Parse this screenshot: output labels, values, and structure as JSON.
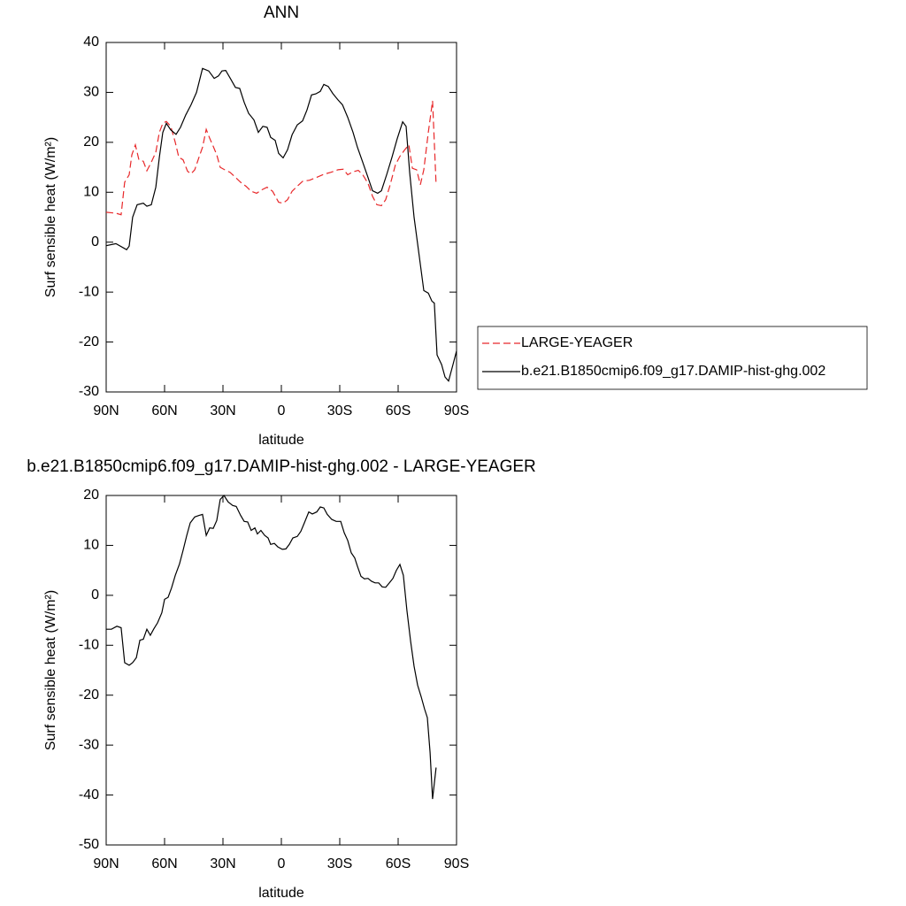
{
  "chart_data": [
    {
      "type": "line",
      "title": "ANN",
      "xlabel": "latitude",
      "ylabel": "Surf sensible heat (W/m²)",
      "xlim": [
        90,
        -90
      ],
      "xticks": [
        {
          "value": 90,
          "label": "90N"
        },
        {
          "value": 60,
          "label": "60N"
        },
        {
          "value": 30,
          "label": "30N"
        },
        0,
        {
          "value": -30,
          "label": "30S"
        },
        {
          "value": -60,
          "label": "60S"
        },
        {
          "value": -90,
          "label": "90S"
        }
      ],
      "ylim": [
        -30,
        40
      ],
      "yticks": [
        -30,
        -20,
        -10,
        0,
        10,
        20,
        30,
        40
      ],
      "legend": "right",
      "series": [
        {
          "name": "LARGE-YEAGER",
          "color": "#e8282a",
          "dash": true,
          "x": [
            90,
            85,
            82.3,
            80.5,
            78.2,
            76.8,
            75,
            73.2,
            70.9,
            69.1,
            66.8,
            64.5,
            62.7,
            60.9,
            59.1,
            56.8,
            54.5,
            52.7,
            50.5,
            48.2,
            46.4,
            44.5,
            42.3,
            40.5,
            38.6,
            36.8,
            35,
            33.2,
            31.4,
            29.1,
            26.4,
            23.6,
            20.9,
            18.2,
            15.5,
            12.7,
            10,
            7.3,
            4.5,
            1.4,
            -0.9,
            -3.2,
            -5.5,
            -8.2,
            -10.9,
            -14.5,
            -18.2,
            -21.8,
            -25.5,
            -29.1,
            -31.8,
            -34.1,
            -36.8,
            -39.5,
            -41.8,
            -44.5,
            -46.8,
            -49.1,
            -51.4,
            -53.6,
            -55.9,
            -58.6,
            -60.9,
            -63.2,
            -65.5,
            -67.3,
            -69.5,
            -71.4,
            -73.2,
            -75.5,
            -77.7,
            -79.5
          ],
          "values": [
            6,
            5.8,
            5.5,
            12,
            13.5,
            17.5,
            19.5,
            16.5,
            16.2,
            14.3,
            16,
            18,
            22,
            23.8,
            24.2,
            23.2,
            20,
            17,
            16.5,
            14.2,
            13.7,
            14.5,
            17,
            19,
            22.6,
            20.8,
            19.2,
            17.5,
            15,
            14.5,
            14,
            13,
            12,
            11.2,
            10.2,
            9.8,
            10.5,
            11,
            10.2,
            8,
            7.8,
            8.5,
            10.2,
            11.2,
            12.2,
            12.4,
            13,
            13.6,
            14,
            14.5,
            14.6,
            13.5,
            14.1,
            14.4,
            13.5,
            11.8,
            9.2,
            7.5,
            7.3,
            8.5,
            11.5,
            15.5,
            17.2,
            18.4,
            19.5,
            14.8,
            14.5,
            11.5,
            14.5,
            22,
            28.3,
            11.5
          ]
        },
        {
          "name": "b.e21.B1850cmip6.f09_g17.DAMIP-hist-ghg.002",
          "color": "#000000",
          "dash": false,
          "x": [
            90,
            85,
            79.5,
            78.2,
            76.4,
            74.1,
            70.9,
            69.1,
            66.8,
            64.5,
            62.7,
            60.9,
            59.1,
            56.8,
            54.1,
            51.8,
            49.1,
            46.4,
            43.6,
            40.5,
            37.3,
            34.5,
            32.3,
            30.5,
            28.6,
            25.9,
            23.6,
            21.4,
            19.1,
            16.8,
            14.1,
            11.8,
            9.5,
            7.3,
            5.5,
            3.2,
            1.4,
            -0.9,
            -3.2,
            -5.5,
            -8.2,
            -10.9,
            -13.2,
            -15.5,
            -17.7,
            -20,
            -21.8,
            -24.1,
            -26.4,
            -29.1,
            -31.4,
            -34.1,
            -36.8,
            -39.1,
            -41.8,
            -44.5,
            -46.8,
            -49.5,
            -51.4,
            -54.1,
            -56.8,
            -59.5,
            -62.3,
            -64.1,
            -65.9,
            -68.2,
            -70.9,
            -73.2,
            -75.5,
            -77.3,
            -78.6,
            -80,
            -82.3,
            -84.1,
            -85.9,
            -88.2,
            -90
          ],
          "values": [
            -0.7,
            -0.3,
            -1.5,
            -0.8,
            5,
            7.5,
            7.8,
            7.2,
            7.5,
            11,
            17,
            22,
            23.8,
            22.5,
            21.6,
            23,
            25.5,
            27.5,
            30,
            34.8,
            34.3,
            32.8,
            33.3,
            34.3,
            34.4,
            32.6,
            31,
            30.8,
            28,
            25.8,
            24.5,
            22,
            23.2,
            23,
            21,
            20.4,
            17.8,
            16.9,
            18.5,
            21.5,
            23.5,
            24.3,
            26.5,
            29.5,
            29.7,
            30.2,
            31.6,
            31.2,
            29.8,
            28.5,
            27.5,
            25,
            22,
            19,
            16,
            13,
            10.3,
            9.8,
            10.3,
            13.5,
            17,
            20.7,
            24.1,
            23.2,
            14,
            5,
            -3,
            -9.7,
            -10.2,
            -11.8,
            -12.2,
            -22.6,
            -24.5,
            -27,
            -27.8,
            -24.5,
            -21.8
          ]
        }
      ]
    },
    {
      "type": "line",
      "title": "b.e21.B1850cmip6.f09_g17.DAMIP-hist-ghg.002 - LARGE-YEAGER",
      "xlabel": "latitude",
      "ylabel": "Surf sensible heat (W/m²)",
      "xlim": [
        90,
        -90
      ],
      "xticks": [
        {
          "value": 90,
          "label": "90N"
        },
        {
          "value": 60,
          "label": "60N"
        },
        {
          "value": 30,
          "label": "30N"
        },
        0,
        {
          "value": -30,
          "label": "30S"
        },
        {
          "value": -60,
          "label": "60S"
        },
        {
          "value": -90,
          "label": "90S"
        }
      ],
      "ylim": [
        -50,
        20
      ],
      "yticks": [
        -50,
        -40,
        -30,
        -20,
        -10,
        0,
        10,
        20
      ],
      "series": [
        {
          "color": "#000000",
          "dash": false,
          "x": [
            90,
            87.3,
            84.5,
            82.3,
            80.5,
            78.2,
            76.4,
            74.5,
            72.7,
            70.9,
            69.1,
            67.3,
            65.5,
            63.6,
            61.4,
            60,
            58.2,
            56.4,
            54.5,
            52.3,
            50.5,
            48.6,
            46.8,
            44.5,
            42.3,
            40.5,
            38.6,
            36.8,
            35,
            33.2,
            31.4,
            29.5,
            27.3,
            25,
            23.2,
            20.9,
            19.1,
            17.3,
            15.5,
            13.6,
            12.3,
            10.5,
            8.6,
            6.8,
            5.5,
            3.6,
            1.8,
            -0.5,
            -2.3,
            -4.1,
            -5.9,
            -8.2,
            -10,
            -11.8,
            -14.1,
            -15.9,
            -18.2,
            -20,
            -21.8,
            -23.6,
            -25.9,
            -28.2,
            -30.5,
            -32.3,
            -34.1,
            -35.9,
            -37.7,
            -39.1,
            -40.9,
            -42.7,
            -44.5,
            -46.4,
            -48.2,
            -50,
            -51.8,
            -53.6,
            -55.5,
            -57.3,
            -59.1,
            -60.9,
            -62.7,
            -64.5,
            -66.4,
            -68.2,
            -70,
            -71.8,
            -73.6,
            -75,
            -76.4,
            -77.7,
            -79.5
          ],
          "values": [
            -6.8,
            -6.8,
            -6.2,
            -6.5,
            -13.5,
            -14,
            -13.5,
            -12.5,
            -9,
            -8.8,
            -6.8,
            -8,
            -6.7,
            -5.5,
            -3.5,
            -0.8,
            -0.4,
            1.5,
            4,
            6.3,
            9,
            12,
            14.5,
            15.7,
            16,
            16.2,
            12,
            13.5,
            13.4,
            15,
            19.2,
            20,
            18.7,
            18,
            17.8,
            16,
            14.8,
            14.7,
            13,
            13.5,
            12.3,
            13,
            12,
            11.5,
            10.2,
            10.4,
            9.7,
            9.2,
            9.3,
            10.2,
            11.5,
            11.8,
            12.8,
            14.5,
            16.7,
            16.3,
            16.7,
            17.7,
            17.5,
            16.2,
            15.2,
            14.8,
            14.8,
            12.5,
            11,
            8.5,
            7.5,
            5.8,
            3.8,
            3.3,
            3.4,
            2.8,
            2.5,
            2.5,
            1.7,
            1.6,
            2.5,
            3.4,
            5,
            6.2,
            4,
            -3,
            -9.2,
            -14.2,
            -18,
            -20.3,
            -22.8,
            -24.5,
            -31.5,
            -40.8,
            -34.5
          ]
        }
      ]
    }
  ]
}
